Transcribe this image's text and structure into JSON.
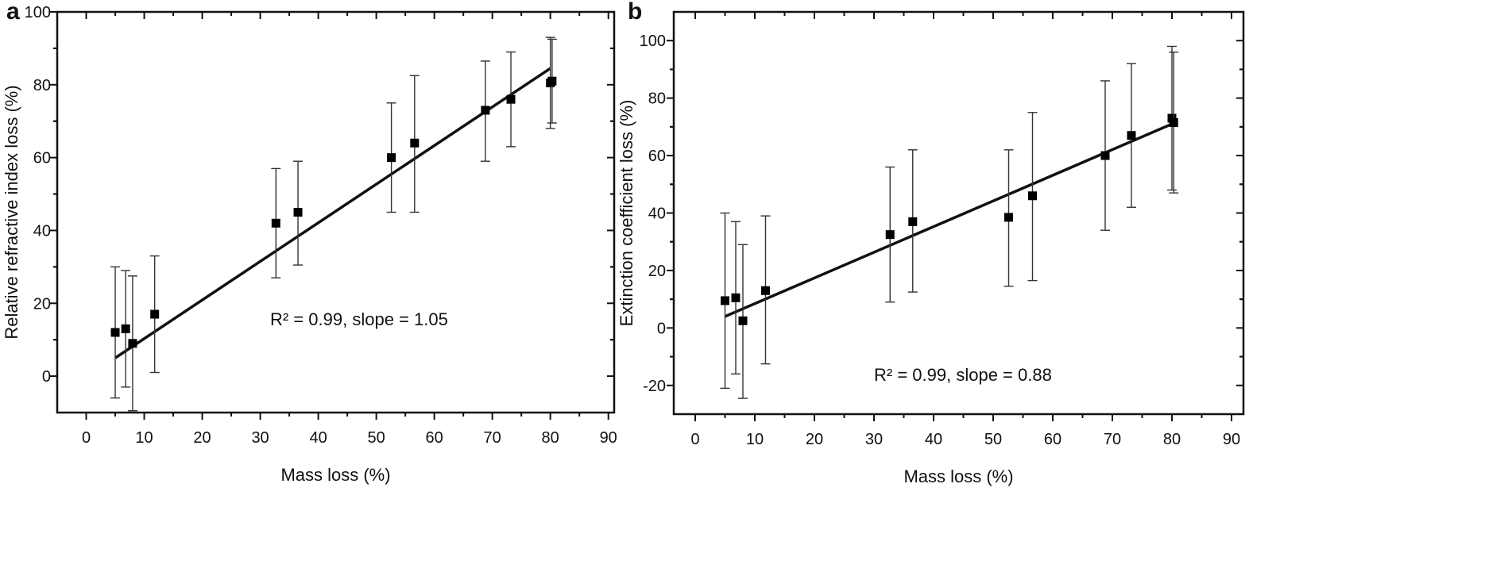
{
  "chart_data": [
    {
      "panel_label": "a",
      "type": "scatter",
      "xlabel": "Mass loss (%)",
      "ylabel": "Relative refractive index loss (%)",
      "xlim": [
        -5,
        91
      ],
      "ylim": [
        -10,
        100
      ],
      "xticks": [
        0,
        10,
        20,
        30,
        40,
        50,
        60,
        70,
        80,
        90
      ],
      "yticks": [
        0,
        20,
        40,
        60,
        80,
        100
      ],
      "grid": false,
      "annotation": "R² = 0.99, slope = 1.05",
      "points": [
        {
          "x": 5,
          "y": 12,
          "err_low": -6,
          "err_high": 30
        },
        {
          "x": 6.8,
          "y": 13,
          "err_low": -3,
          "err_high": 29
        },
        {
          "x": 8,
          "y": 9,
          "err_low": -9.5,
          "err_high": 27.5
        },
        {
          "x": 11.8,
          "y": 17,
          "err_low": 1,
          "err_high": 33
        },
        {
          "x": 32.7,
          "y": 42,
          "err_low": 27,
          "err_high": 57
        },
        {
          "x": 36.5,
          "y": 45,
          "err_low": 30.5,
          "err_high": 59
        },
        {
          "x": 52.6,
          "y": 60,
          "err_low": 45,
          "err_high": 75
        },
        {
          "x": 56.6,
          "y": 64,
          "err_low": 45,
          "err_high": 82.5
        },
        {
          "x": 68.8,
          "y": 73,
          "err_low": 59,
          "err_high": 86.5
        },
        {
          "x": 73.2,
          "y": 76,
          "err_low": 63,
          "err_high": 89
        },
        {
          "x": 80,
          "y": 80.5,
          "err_low": 68,
          "err_high": 93
        },
        {
          "x": 80.3,
          "y": 81,
          "err_low": 69.5,
          "err_high": 92.5
        }
      ],
      "fit_line": {
        "x": [
          5,
          80
        ],
        "y": [
          5,
          84.5
        ]
      }
    },
    {
      "panel_label": "b",
      "type": "scatter",
      "xlabel": "Mass loss (%)",
      "ylabel": "Extinction coefficient loss (%)",
      "xlim": [
        -3.6,
        92
      ],
      "ylim": [
        -30,
        110
      ],
      "xticks": [
        0,
        10,
        20,
        30,
        40,
        50,
        60,
        70,
        80,
        90
      ],
      "yticks": [
        -20,
        0,
        20,
        40,
        60,
        80,
        100
      ],
      "grid": false,
      "annotation": "R² = 0.99, slope = 0.88",
      "points": [
        {
          "x": 5,
          "y": 9.5,
          "err_low": -21,
          "err_high": 40
        },
        {
          "x": 6.8,
          "y": 10.5,
          "err_low": -16,
          "err_high": 37
        },
        {
          "x": 8,
          "y": 2.5,
          "err_low": -24.5,
          "err_high": 29
        },
        {
          "x": 11.8,
          "y": 13,
          "err_low": -12.5,
          "err_high": 39
        },
        {
          "x": 32.7,
          "y": 32.5,
          "err_low": 9,
          "err_high": 56
        },
        {
          "x": 36.5,
          "y": 37,
          "err_low": 12.5,
          "err_high": 62
        },
        {
          "x": 52.6,
          "y": 38.5,
          "err_low": 14.5,
          "err_high": 62
        },
        {
          "x": 56.6,
          "y": 46,
          "err_low": 16.5,
          "err_high": 75
        },
        {
          "x": 68.8,
          "y": 60,
          "err_low": 34,
          "err_high": 86
        },
        {
          "x": 73.2,
          "y": 67,
          "err_low": 42,
          "err_high": 92
        },
        {
          "x": 80,
          "y": 73,
          "err_low": 48,
          "err_high": 98
        },
        {
          "x": 80.3,
          "y": 71.5,
          "err_low": 47,
          "err_high": 96
        }
      ],
      "fit_line": {
        "x": [
          5,
          80
        ],
        "y": [
          4,
          71
        ]
      }
    }
  ]
}
